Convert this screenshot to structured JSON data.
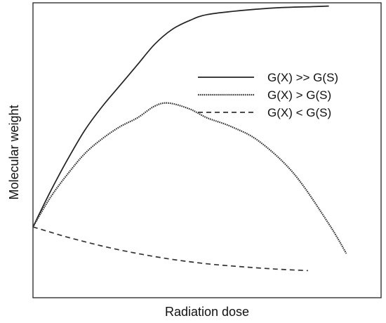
{
  "chart_data": {
    "type": "line",
    "title": "",
    "xlabel": "Radiation dose",
    "ylabel": "Molecular weight",
    "xlim": [
      0,
      100
    ],
    "ylim": [
      0,
      100
    ],
    "grid": false,
    "tick_labels": false,
    "legend_position": "right",
    "series": [
      {
        "name": "G(X) >> G(S)",
        "style": "solid",
        "color": "#222222",
        "points": [
          [
            0,
            24
          ],
          [
            5,
            36
          ],
          [
            10,
            47
          ],
          [
            15,
            57
          ],
          [
            20,
            65
          ],
          [
            25,
            72
          ],
          [
            30,
            79
          ],
          [
            35,
            86
          ],
          [
            40,
            91
          ],
          [
            45,
            94
          ],
          [
            50,
            96
          ],
          [
            60,
            97.4
          ],
          [
            70,
            98.3
          ],
          [
            80,
            98.7
          ],
          [
            85,
            98.9
          ]
        ]
      },
      {
        "name": "G(X) > G(S)",
        "style": "dotted",
        "color": "#333333",
        "points": [
          [
            0,
            24
          ],
          [
            5,
            34
          ],
          [
            10,
            42
          ],
          [
            15,
            49
          ],
          [
            20,
            54
          ],
          [
            25,
            58
          ],
          [
            30,
            61
          ],
          [
            35,
            65
          ],
          [
            39,
            66
          ],
          [
            45,
            64
          ],
          [
            50,
            61
          ],
          [
            57,
            58
          ],
          [
            65,
            53
          ],
          [
            75,
            42
          ],
          [
            85,
            25
          ],
          [
            90,
            15
          ]
        ]
      },
      {
        "name": "G(X) < G(S)",
        "style": "dashed",
        "color": "#333333",
        "points": [
          [
            0,
            24
          ],
          [
            10,
            20.5
          ],
          [
            20,
            17.5
          ],
          [
            30,
            15
          ],
          [
            40,
            13
          ],
          [
            50,
            11.5
          ],
          [
            60,
            10.5
          ],
          [
            70,
            9.7
          ],
          [
            79,
            9.2
          ]
        ]
      }
    ]
  }
}
